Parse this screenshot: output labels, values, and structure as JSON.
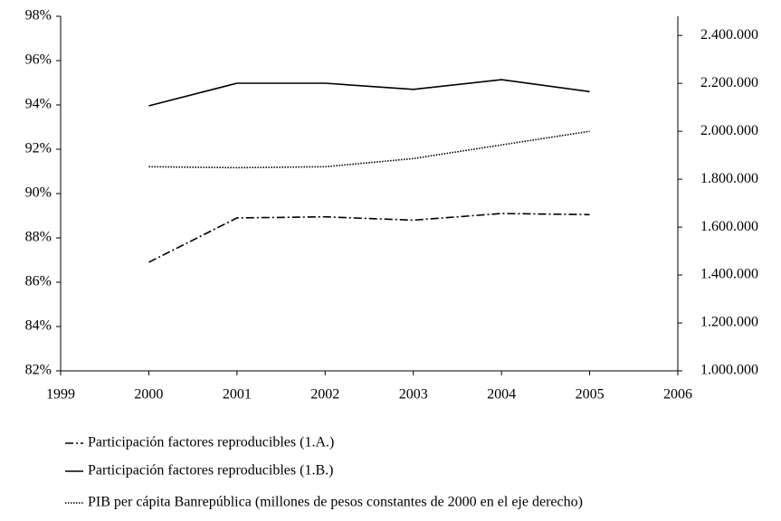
{
  "chart_data": {
    "type": "line",
    "x": [
      2000,
      2001,
      2002,
      2003,
      2004,
      2005
    ],
    "xlim": [
      1999,
      2006
    ],
    "xticks": [
      1999,
      2000,
      2001,
      2002,
      2003,
      2004,
      2005,
      2006
    ],
    "ylim": [
      82,
      98
    ],
    "yticks": [
      {
        "value": 82,
        "label": "82%"
      },
      {
        "value": 84,
        "label": "84%"
      },
      {
        "value": 86,
        "label": "86%"
      },
      {
        "value": 88,
        "label": "88%"
      },
      {
        "value": 90,
        "label": "90%"
      },
      {
        "value": 92,
        "label": "92%"
      },
      {
        "value": 94,
        "label": "94%"
      },
      {
        "value": 96,
        "label": "96%"
      },
      {
        "value": 98,
        "label": "98%"
      }
    ],
    "y2lim": [
      1000000,
      2480000
    ],
    "y2ticks": [
      {
        "value": 1000000,
        "label": "1.000.000"
      },
      {
        "value": 1200000,
        "label": "1.200.000"
      },
      {
        "value": 1400000,
        "label": "1.400.000"
      },
      {
        "value": 1600000,
        "label": "1.600.000"
      },
      {
        "value": 1800000,
        "label": "1.800.000"
      },
      {
        "value": 2000000,
        "label": "2.000.000"
      },
      {
        "value": 2200000,
        "label": "2.200.000"
      },
      {
        "value": 2400000,
        "label": "2.400.000"
      }
    ],
    "series": [
      {
        "name": "Participación factores reproducibles (1.A.)",
        "color": "#000000",
        "dash": "9,3,2,3",
        "values": [
          86.9,
          88.9,
          88.95,
          88.8,
          89.1,
          89.05
        ]
      },
      {
        "name": "Participación factores reproducibles (1.B.)",
        "color": "#000000",
        "dash": "none",
        "values": [
          93.96,
          94.98,
          94.98,
          94.7,
          95.14,
          94.6
        ]
      },
      {
        "name": "PIB per cápita Banrepública (millones de pesos constantes de 2000 en el eje derecho)",
        "color": "#000000",
        "dash": "1.5,1.5",
        "axis": "y2",
        "values": [
          1852000,
          1848000,
          1852000,
          1886000,
          1943000,
          2000000
        ]
      }
    ]
  }
}
